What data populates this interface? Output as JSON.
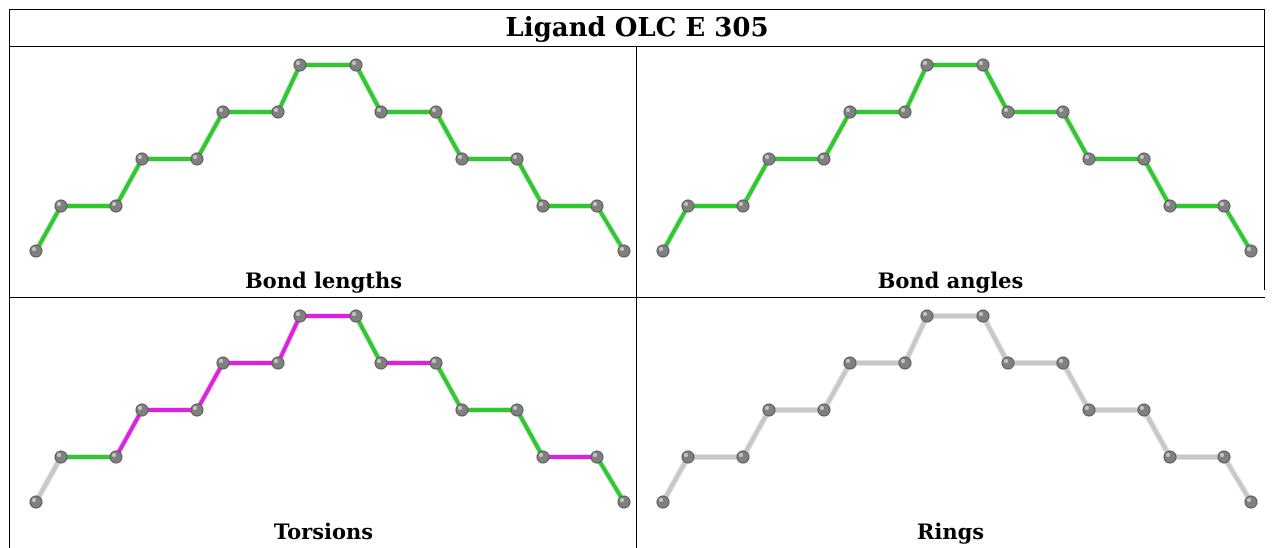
{
  "title": "Ligand OLC E 305",
  "panels": [
    {
      "label": "Bond lengths",
      "bond_colors": [
        "#2dca2d",
        "#2dca2d",
        "#2dca2d",
        "#2dca2d",
        "#2dca2d",
        "#2dca2d",
        "#2dca2d",
        "#2dca2d",
        "#2dca2d",
        "#2dca2d",
        "#2dca2d",
        "#2dca2d",
        "#2dca2d",
        "#2dca2d",
        "#2dca2d",
        "#2dca2d",
        "#2dca2d"
      ]
    },
    {
      "label": "Bond angles",
      "bond_colors": [
        "#2dca2d",
        "#2dca2d",
        "#2dca2d",
        "#2dca2d",
        "#2dca2d",
        "#2dca2d",
        "#2dca2d",
        "#2dca2d",
        "#2dca2d",
        "#2dca2d",
        "#2dca2d",
        "#2dca2d",
        "#2dca2d",
        "#2dca2d",
        "#2dca2d",
        "#2dca2d",
        "#2dca2d"
      ]
    },
    {
      "label": "Torsions",
      "bond_colors": [
        "#c8c8c8",
        "#2dca2d",
        "#e020e0",
        "#e020e0",
        "#e020e0",
        "#e020e0",
        "#e020e0",
        "#e020e0",
        "#2dca2d",
        "#e020e0",
        "#2dca2d",
        "#2dca2d",
        "#2dca2d",
        "#e020e0",
        "#2dca2d",
        "#2dca2d",
        "#c8c8c8"
      ]
    },
    {
      "label": "Rings",
      "bond_colors": [
        "#c8c8c8",
        "#c8c8c8",
        "#c8c8c8",
        "#c8c8c8",
        "#c8c8c8",
        "#c8c8c8",
        "#c8c8c8",
        "#c8c8c8",
        "#c8c8c8",
        "#c8c8c8",
        "#c8c8c8",
        "#c8c8c8",
        "#c8c8c8",
        "#c8c8c8",
        "#c8c8c8",
        "#c8c8c8",
        "#c8c8c8"
      ]
    }
  ],
  "atom_color": "#808080"
}
